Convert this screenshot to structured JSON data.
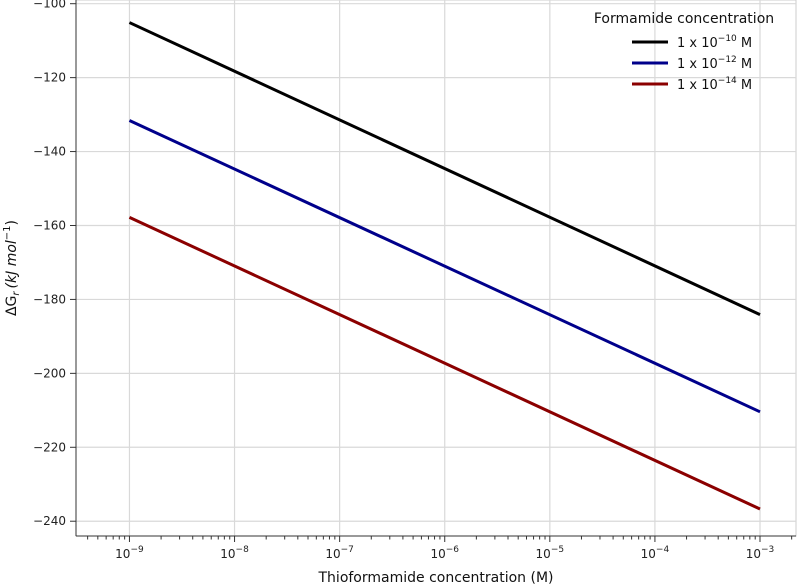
{
  "chart_data": {
    "type": "line",
    "xlabel": "Thioformamide concentration (M)",
    "ylabel_main": "ΔG",
    "ylabel_sub": "r",
    "ylabel_units": "(kJ mol",
    "ylabel_exp": "−1",
    "ylabel_close": ")",
    "xscale": "log",
    "xlim": [
      3.1e-10,
      0.0022
    ],
    "ylim": [
      -244,
      -99
    ],
    "grid": true,
    "x_ticks": [
      {
        "value": 1e-09,
        "base": "10",
        "exp": "−9"
      },
      {
        "value": 1e-08,
        "base": "10",
        "exp": "−8"
      },
      {
        "value": 1e-07,
        "base": "10",
        "exp": "−7"
      },
      {
        "value": 1e-06,
        "base": "10",
        "exp": "−6"
      },
      {
        "value": 1e-05,
        "base": "10",
        "exp": "−5"
      },
      {
        "value": 0.0001,
        "base": "10",
        "exp": "−4"
      },
      {
        "value": 0.001,
        "base": "10",
        "exp": "−3"
      }
    ],
    "y_ticks": [
      {
        "value": -100,
        "label": "−100"
      },
      {
        "value": -120,
        "label": "−120"
      },
      {
        "value": -140,
        "label": "−140"
      },
      {
        "value": -160,
        "label": "−160"
      },
      {
        "value": -180,
        "label": "−180"
      },
      {
        "value": -200,
        "label": "−200"
      },
      {
        "value": -220,
        "label": "−220"
      },
      {
        "value": -240,
        "label": "−240"
      }
    ],
    "legend": {
      "title": "Formamide concentration",
      "placement": "top-right"
    },
    "series": [
      {
        "name_prefix": "1 x 10",
        "name_exp": "−10",
        "name_unit": " M",
        "color": "#000000",
        "x": [
          1e-09,
          0.001
        ],
        "y": [
          -105.1,
          -184.1
        ]
      },
      {
        "name_prefix": "1 x 10",
        "name_exp": "−12",
        "name_unit": " M",
        "color": "#00008b",
        "x": [
          1e-09,
          0.001
        ],
        "y": [
          -131.6,
          -210.4
        ]
      },
      {
        "name_prefix": "1 x 10",
        "name_exp": "−14",
        "name_unit": " M",
        "color": "#8b0000",
        "x": [
          1e-09,
          0.001
        ],
        "y": [
          -157.8,
          -236.7
        ]
      }
    ]
  }
}
